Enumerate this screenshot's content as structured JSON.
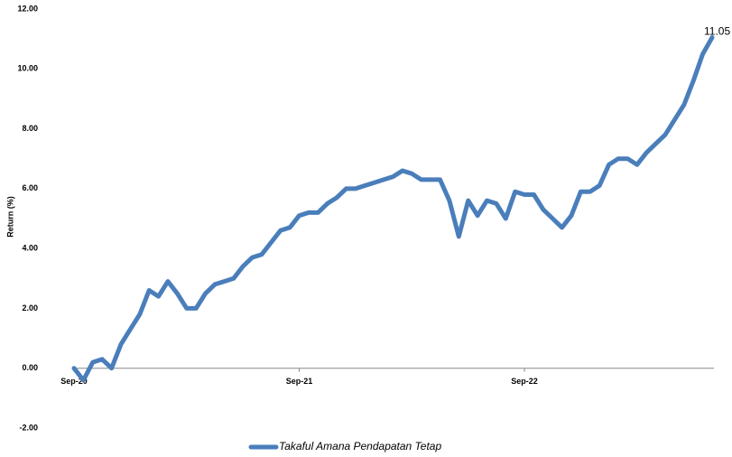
{
  "chart_data": {
    "type": "line",
    "y_label": "Return (%)",
    "categories": [
      "Sep-20",
      null,
      null,
      null,
      null,
      null,
      null,
      null,
      null,
      null,
      null,
      null,
      null,
      null,
      null,
      null,
      null,
      null,
      null,
      null,
      null,
      null,
      null,
      null,
      "Sep-21",
      null,
      null,
      null,
      null,
      null,
      null,
      null,
      null,
      null,
      null,
      null,
      null,
      null,
      null,
      null,
      null,
      null,
      null,
      null,
      null,
      null,
      null,
      null,
      "Sep-22",
      null,
      null,
      null,
      null,
      null,
      null,
      null,
      null,
      null,
      null,
      null,
      null,
      null,
      null,
      null,
      null,
      null,
      null,
      null,
      null
    ],
    "series": [
      {
        "name": "Takaful Amana Pendapatan Tetap",
        "color": "#4a7ebb",
        "values": [
          0,
          -0.4,
          0.2,
          0.3,
          0.0,
          0.8,
          1.3,
          1.8,
          2.6,
          2.4,
          2.9,
          2.5,
          2.0,
          2.0,
          2.5,
          2.8,
          2.9,
          3.0,
          3.4,
          3.7,
          3.8,
          4.2,
          4.6,
          4.7,
          5.1,
          5.2,
          5.2,
          5.5,
          5.7,
          6.0,
          6.0,
          6.1,
          6.2,
          6.3,
          6.4,
          6.6,
          6.5,
          6.3,
          6.3,
          6.3,
          5.6,
          4.4,
          5.6,
          5.1,
          5.6,
          5.5,
          5.0,
          5.9,
          5.8,
          5.8,
          5.3,
          5.0,
          4.7,
          5.1,
          5.9,
          5.9,
          6.1,
          6.8,
          7.0,
          7.0,
          6.8,
          7.2,
          7.5,
          7.8,
          8.3,
          8.8,
          9.6,
          10.5,
          11.05
        ]
      }
    ],
    "ylim": [
      -2,
      12
    ],
    "yticks": [
      {
        "value": -2,
        "label": "-2.00"
      },
      {
        "value": 0,
        "label": "0.00"
      },
      {
        "value": 2,
        "label": "2.00"
      },
      {
        "value": 4,
        "label": "4.00"
      },
      {
        "value": 6,
        "label": "6.00"
      },
      {
        "value": 8,
        "label": "8.00"
      },
      {
        "value": 10,
        "label": "10.00"
      },
      {
        "value": 12,
        "label": "12.00"
      }
    ],
    "grid": false,
    "legend": "bottom"
  }
}
